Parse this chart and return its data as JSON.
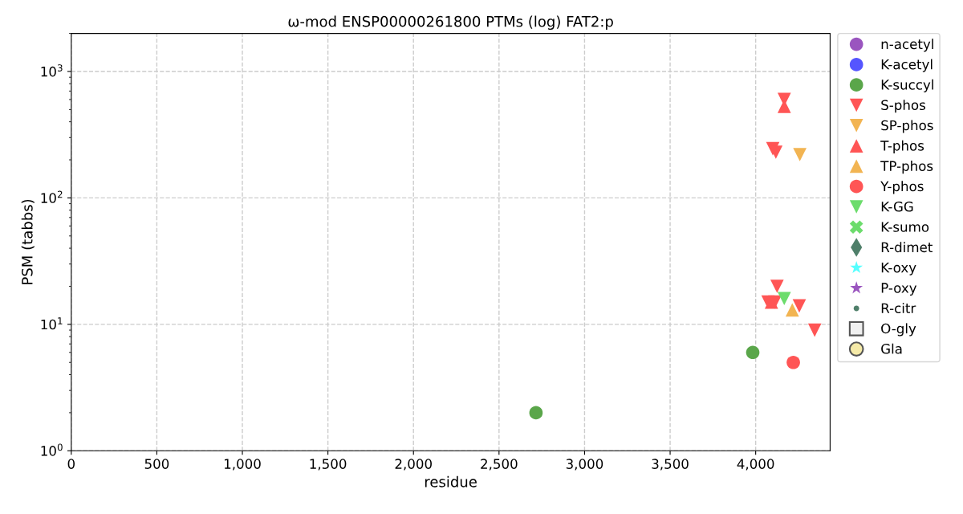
{
  "chart_data": {
    "type": "scatter",
    "title": "ω-mod ENSP00000261800 PTMs (log) FAT2:p",
    "xlabel": "residue",
    "ylabel": "PSM (tabbs)",
    "xlim": [
      0,
      4435
    ],
    "xticks": [
      0,
      {
        "value": 500,
        "label": "500"
      },
      {
        "value": 1000,
        "label": "1,000"
      },
      {
        "value": 1500,
        "label": "1,500"
      },
      {
        "value": 2000,
        "label": "2,000"
      },
      {
        "value": 2500,
        "label": "2,500"
      },
      {
        "value": 3000,
        "label": "3,000"
      },
      {
        "value": 3500,
        "label": "3,500"
      },
      {
        "value": 4000,
        "label": "4,000"
      }
    ],
    "ylim": [
      1,
      2000
    ],
    "yticks": [
      {
        "value": 1,
        "label": "10$^{0}$"
      },
      {
        "value": 10,
        "label": "10$^{1}$"
      },
      {
        "value": 100,
        "label": "10$^{2}$"
      },
      {
        "value": 1000,
        "label": "10$^{3}$"
      }
    ],
    "log": "y",
    "grid": true,
    "legend": "top right",
    "series": [
      {
        "name": "n-acetyl",
        "color": "#9a55bf",
        "marker": "circle"
      },
      {
        "name": "K-acetyl",
        "color": "#5555ff",
        "marker": "circle"
      },
      {
        "name": "K-succyl",
        "color": "#5aa64a",
        "marker": "circle",
        "x": [
          2716,
          3983
        ],
        "values": [
          2,
          6
        ]
      },
      {
        "name": "S-phos",
        "color": "#ff5555",
        "marker": "triangle_down",
        "x": [
          4167,
          4100,
          4118,
          4125,
          4072,
          4112,
          4255,
          4345
        ],
        "values": [
          600,
          245,
          230,
          20,
          15,
          15,
          14,
          9
        ]
      },
      {
        "name": "SP-phos",
        "color": "#f2b452",
        "marker": "triangle_down",
        "x": [
          4258
        ],
        "values": [
          220
        ]
      },
      {
        "name": "T-phos",
        "color": "#ff5555",
        "marker": "triangle",
        "x": [
          4167,
          4092
        ],
        "values": [
          530,
          15
        ]
      },
      {
        "name": "TP-phos",
        "color": "#f2b452",
        "marker": "triangle",
        "x": [
          4214
        ],
        "values": [
          13
        ]
      },
      {
        "name": "Y-phos",
        "color": "#ff5555",
        "marker": "circle",
        "x": [
          4220
        ],
        "values": [
          5
        ]
      },
      {
        "name": "K-GG",
        "color": "#6cdc6c",
        "marker": "triangle_down",
        "x": [
          4167
        ],
        "values": [
          16
        ]
      },
      {
        "name": "K-sumo",
        "color": "#6cdc6c",
        "marker": "cross"
      },
      {
        "name": "R-dimet",
        "color": "#4f7f6a",
        "marker": "diamond"
      },
      {
        "name": "K-oxy",
        "color": "#55ffff",
        "marker": "star"
      },
      {
        "name": "P-oxy",
        "color": "#9a55bf",
        "marker": "star"
      },
      {
        "name": "R-citr",
        "color": "#4f7f6a",
        "marker": "point"
      },
      {
        "name": "O-gly",
        "color": "#f0f0f0",
        "marker": "square"
      },
      {
        "name": "Gla",
        "color": "#f5eaa8",
        "marker": "circle"
      }
    ]
  }
}
